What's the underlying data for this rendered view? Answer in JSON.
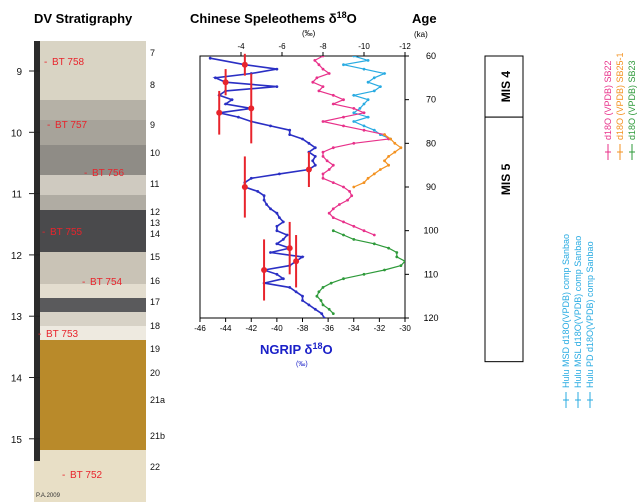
{
  "titles": {
    "stratigraphy": "DV Stratigraphy",
    "speleothem_main": "Chinese Speleothems δ",
    "speleothem_sup": "18",
    "speleothem_end": "O",
    "speleothem_unit": "(‰)",
    "age": "Age",
    "age_unit": "(ka)",
    "ngrip_main": "NGRIP δ",
    "ngrip_sup": "18",
    "ngrip_end": "O",
    "ngrip_unit": "(‰)"
  },
  "stratigraphy": {
    "depth_ticks": [
      "9",
      "10",
      "11",
      "12",
      "13",
      "14",
      "15"
    ],
    "layer_numbers": [
      "7",
      "8",
      "9",
      "10",
      "11",
      "12",
      "13",
      "14",
      "15",
      "16",
      "17",
      "18",
      "19",
      "20",
      "21a",
      "21b",
      "22"
    ],
    "samples": [
      "BT 758",
      "BT 757",
      "BT 756",
      "BT 755",
      "BT 754",
      "BT 753",
      "BT 752"
    ],
    "credit": "P.A.2009",
    "colors": {
      "light": "#d9d4c4",
      "grey": "#a7a39a",
      "dark": "#4a4a4c",
      "gold": "#b98a2a",
      "cream": "#e8dfc6",
      "label": "#e8242c"
    }
  },
  "stages": [
    {
      "label": "MIS 4",
      "from": 60,
      "to": 74
    },
    {
      "label": "MIS 5",
      "from": 74,
      "to": 130
    }
  ],
  "legend": {
    "top_group": [
      {
        "name": "d18O (VPDB) SB22",
        "color": "#e8318a"
      },
      {
        "name": "d18O (VPDB) SB25-1",
        "color": "#f39221"
      },
      {
        "name": "d18O (VPDB) SB23",
        "color": "#2e9a3a"
      }
    ],
    "bottom_group": [
      {
        "name": "Hulu MSD d18O(VPDB) comp Sanbao",
        "color": "#29abe2"
      },
      {
        "name": "Hulu MSL d18O(VPDB) comp Sanbao",
        "color": "#29abe2"
      },
      {
        "name": "Hulu PD d18O(VPDB) comp Sanbao",
        "color": "#29abe2"
      }
    ]
  },
  "chart_data": {
    "type": "line",
    "y_axis": {
      "label": "Age",
      "unit": "(ka)",
      "range": [
        60,
        120
      ],
      "ticks": [
        60,
        70,
        80,
        90,
        100,
        110,
        120
      ],
      "direction": "down"
    },
    "top_axis": {
      "label": "Chinese Speleothems δ18O",
      "unit": "(‰)",
      "range": [
        -2,
        -12
      ],
      "ticks": [
        -4,
        -6,
        -8,
        -10,
        -12
      ]
    },
    "bottom_axis": {
      "label": "NGRIP δ18O",
      "unit": "(‰)",
      "range": [
        -46,
        -30
      ],
      "ticks": [
        -46,
        -44,
        -42,
        -40,
        -38,
        -36,
        -34,
        -32,
        -30
      ]
    },
    "series": [
      {
        "axis": "bottom",
        "color": "#2a2fc4",
        "points": [
          [
            60.5,
            -45.2
          ],
          [
            62,
            -42.5
          ],
          [
            63,
            -40
          ],
          [
            64,
            -42
          ],
          [
            65,
            -44.8
          ],
          [
            66,
            -44
          ],
          [
            67,
            -40
          ],
          [
            68,
            -44
          ],
          [
            69,
            -44.5
          ],
          [
            70,
            -43.5
          ],
          [
            71,
            -44
          ],
          [
            72,
            -42
          ],
          [
            73,
            -44.5
          ],
          [
            74,
            -43
          ],
          [
            75,
            -42
          ],
          [
            76,
            -40.5
          ],
          [
            77,
            -39
          ],
          [
            78,
            -39
          ],
          [
            79,
            -38
          ],
          [
            80,
            -37.5
          ],
          [
            81,
            -37
          ],
          [
            82,
            -37.5
          ],
          [
            83,
            -37
          ],
          [
            84,
            -37.2
          ],
          [
            85,
            -37
          ],
          [
            86,
            -37.5
          ],
          [
            87,
            -39.8
          ],
          [
            88,
            -42
          ],
          [
            89,
            -42.5
          ],
          [
            90,
            -42.5
          ],
          [
            91,
            -41.5
          ],
          [
            92,
            -41
          ],
          [
            93,
            -41
          ],
          [
            94,
            -40.8
          ],
          [
            95,
            -40.5
          ],
          [
            96,
            -40
          ],
          [
            97,
            -39.8
          ],
          [
            98,
            -39.5
          ],
          [
            99,
            -40
          ],
          [
            100,
            -40
          ],
          [
            101,
            -39.2
          ],
          [
            102,
            -39.5
          ],
          [
            103,
            -40
          ],
          [
            104,
            -39
          ],
          [
            105,
            -40.5
          ],
          [
            106,
            -38
          ],
          [
            107,
            -38.5
          ],
          [
            108,
            -39
          ],
          [
            109,
            -41
          ],
          [
            110,
            -40
          ],
          [
            111,
            -39.5
          ],
          [
            112,
            -41
          ],
          [
            113,
            -39
          ],
          [
            114,
            -38.5
          ],
          [
            115,
            -38
          ],
          [
            116,
            -38
          ],
          [
            117,
            -37.5
          ],
          [
            118,
            -37
          ],
          [
            119,
            -36.5
          ],
          [
            120,
            -36.3
          ]
        ]
      },
      {
        "axis": "top",
        "color": "#29abe2",
        "points": [
          [
            60,
            -9.5
          ],
          [
            61,
            -10.2
          ],
          [
            62,
            -9
          ],
          [
            63,
            -10
          ],
          [
            64,
            -11
          ],
          [
            65,
            -10.5
          ],
          [
            66,
            -10.2
          ],
          [
            67,
            -10.8
          ],
          [
            68,
            -10.5
          ],
          [
            69,
            -9.5
          ],
          [
            70,
            -10.2
          ],
          [
            71,
            -10
          ],
          [
            72,
            -9.8
          ],
          [
            73,
            -9.5
          ],
          [
            74,
            -10.2
          ],
          [
            75,
            -9.5
          ],
          [
            76,
            -10
          ],
          [
            77,
            -10.5
          ],
          [
            78,
            -10.8
          ],
          [
            79,
            -11.3
          ]
        ]
      },
      {
        "axis": "top",
        "color": "#e8318a",
        "points": [
          [
            60,
            -8
          ],
          [
            61,
            -7.6
          ],
          [
            62,
            -7.8
          ],
          [
            63,
            -8
          ],
          [
            64,
            -8.3
          ],
          [
            65,
            -7.7
          ],
          [
            66,
            -7.5
          ],
          [
            67,
            -8
          ],
          [
            68,
            -7.8
          ],
          [
            69,
            -8.5
          ],
          [
            70,
            -9
          ],
          [
            71,
            -8.5
          ],
          [
            72,
            -9.5
          ],
          [
            73,
            -10
          ],
          [
            74,
            -9
          ],
          [
            75,
            -8
          ],
          [
            76,
            -9
          ],
          [
            77,
            -10
          ],
          [
            78,
            -11
          ],
          [
            79,
            -11.2
          ],
          [
            80,
            -9.5
          ],
          [
            81,
            -8.5
          ],
          [
            82,
            -8
          ],
          [
            83,
            -8
          ],
          [
            84,
            -8.2
          ],
          [
            85,
            -8.5
          ],
          [
            86,
            -8.3
          ],
          [
            87,
            -8
          ],
          [
            88,
            -8
          ],
          [
            89,
            -8.5
          ],
          [
            90,
            -9
          ],
          [
            91,
            -9.3
          ],
          [
            92,
            -9.4
          ],
          [
            93,
            -9.2
          ],
          [
            94,
            -8.8
          ],
          [
            95,
            -8.5
          ],
          [
            96,
            -8.3
          ],
          [
            97,
            -8.5
          ],
          [
            98,
            -9
          ],
          [
            99,
            -9.5
          ],
          [
            100,
            -10
          ],
          [
            101,
            -10.5
          ]
        ]
      },
      {
        "axis": "top",
        "color": "#f39221",
        "points": [
          [
            78,
            -11
          ],
          [
            79,
            -11.3
          ],
          [
            80,
            -11.5
          ],
          [
            81,
            -11.8
          ],
          [
            82,
            -11.5
          ],
          [
            83,
            -11.2
          ],
          [
            84,
            -11
          ],
          [
            85,
            -11.2
          ],
          [
            86,
            -10.8
          ],
          [
            87,
            -10.5
          ],
          [
            88,
            -10.2
          ],
          [
            89,
            -10
          ],
          [
            90,
            -9.5
          ]
        ]
      },
      {
        "axis": "top",
        "color": "#2e9a3a",
        "points": [
          [
            100,
            -8.5
          ],
          [
            101,
            -9
          ],
          [
            102,
            -9.5
          ],
          [
            103,
            -10.5
          ],
          [
            104,
            -11.2
          ],
          [
            105,
            -11.6
          ],
          [
            106,
            -11.6
          ],
          [
            107,
            -12
          ],
          [
            108,
            -11.8
          ],
          [
            109,
            -11
          ],
          [
            110,
            -10
          ],
          [
            111,
            -9
          ],
          [
            112,
            -8.4
          ],
          [
            113,
            -8
          ],
          [
            114,
            -7.8
          ],
          [
            115,
            -7.7
          ],
          [
            116,
            -7.9
          ],
          [
            117,
            -8
          ],
          [
            118,
            -8.3
          ],
          [
            119,
            -8.5
          ]
        ]
      }
    ],
    "red_markers": [
      {
        "age": 62,
        "err": 2.5
      },
      {
        "age": 66,
        "err": 3
      },
      {
        "age": 72,
        "err": 8
      },
      {
        "age": 73,
        "err": 5
      },
      {
        "age": 86,
        "err": 4
      },
      {
        "age": 90,
        "err": 7
      },
      {
        "age": 104,
        "err": 6
      },
      {
        "age": 107,
        "err": 6
      },
      {
        "age": 109,
        "err": 7
      }
    ]
  }
}
